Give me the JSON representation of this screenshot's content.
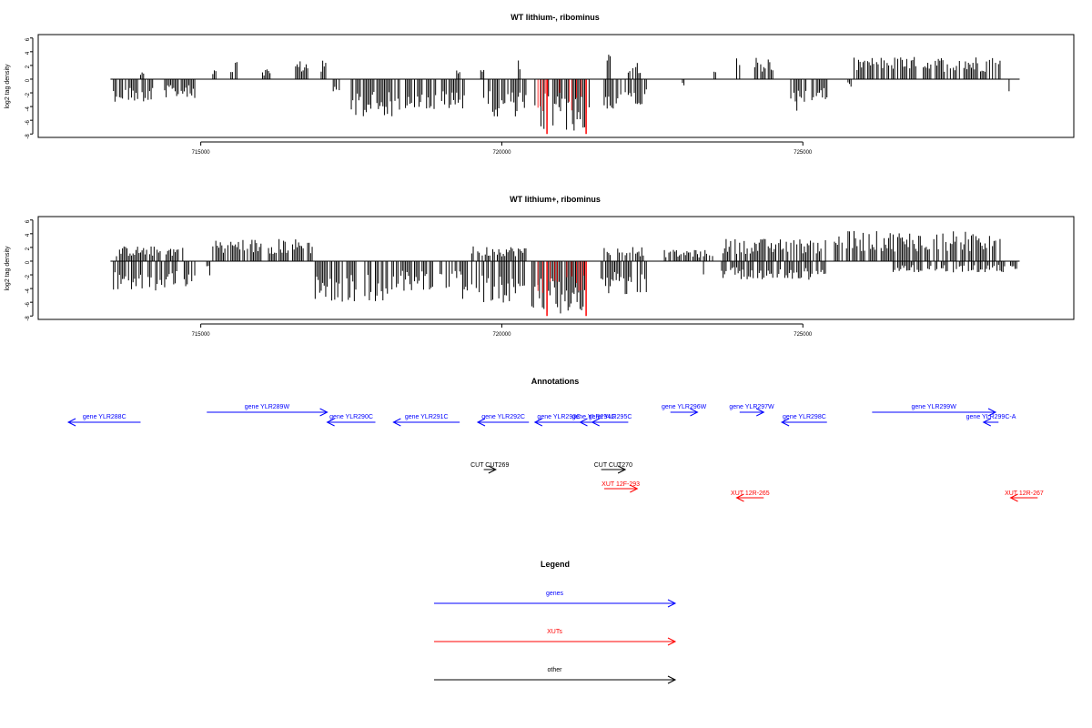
{
  "chart_data": [
    {
      "type": "bar",
      "title": "WT lithium-, ribominus",
      "ylabel": "log2 tag density",
      "xlim": [
        712300,
        729500
      ],
      "ylim": [
        -8.5,
        6.5
      ],
      "yticks": [
        6,
        4,
        2,
        0,
        -2,
        -4,
        -6,
        -8
      ],
      "xticks": [
        715000,
        720000,
        725000
      ],
      "xtick_labels": [
        "715000",
        "720000",
        "725000"
      ],
      "baseline_range": [
        713500,
        728600
      ],
      "highlight_color": "#ff0000",
      "highlights": [
        {
          "x": 720750,
          "y": -8
        },
        {
          "x": 721400,
          "y": -8
        }
      ],
      "segments": [
        {
          "start": 713550,
          "end": 714200,
          "sign": -1,
          "level": 3.0,
          "bar_color": "#000000"
        },
        {
          "start": 714000,
          "end": 714050,
          "sign": 1,
          "level": 1.5,
          "bar_color": "#000000"
        },
        {
          "start": 714400,
          "end": 714900,
          "sign": -1,
          "level": 2.5,
          "bar_color": "#000000"
        },
        {
          "start": 715200,
          "end": 715250,
          "sign": 1,
          "level": 1.5,
          "bar_color": "#000000"
        },
        {
          "start": 715500,
          "end": 715600,
          "sign": 1,
          "level": 2.5,
          "bar_color": "#000000"
        },
        {
          "start": 716000,
          "end": 716150,
          "sign": 1,
          "level": 1.5,
          "bar_color": "#000000"
        },
        {
          "start": 716550,
          "end": 716800,
          "sign": 1,
          "level": 2.5,
          "bar_color": "#000000"
        },
        {
          "start": 717000,
          "end": 717080,
          "sign": 1,
          "level": 2.5,
          "bar_color": "#000000"
        },
        {
          "start": 717200,
          "end": 717300,
          "sign": -1,
          "level": 2.5,
          "bar_color": "#000000"
        },
        {
          "start": 717400,
          "end": 718300,
          "sign": -1,
          "level": 5.0,
          "bar_color": "#000000"
        },
        {
          "start": 718400,
          "end": 719400,
          "sign": -1,
          "level": 4.5,
          "bar_color": "#000000"
        },
        {
          "start": 719250,
          "end": 719300,
          "sign": 1,
          "level": 1.2,
          "bar_color": "#000000"
        },
        {
          "start": 719650,
          "end": 719700,
          "sign": 1,
          "level": 1.5,
          "bar_color": "#000000"
        },
        {
          "start": 719700,
          "end": 720400,
          "sign": -1,
          "level": 5.0,
          "bar_color": "#000000"
        },
        {
          "start": 720250,
          "end": 720300,
          "sign": 1,
          "level": 3.5,
          "bar_color": "#000000"
        },
        {
          "start": 720550,
          "end": 721450,
          "sign": -1,
          "level": 7.0,
          "bar_color": "#000000"
        },
        {
          "start": 721700,
          "end": 722400,
          "sign": -1,
          "level": 4.0,
          "bar_color": "#000000"
        },
        {
          "start": 721750,
          "end": 721800,
          "sign": 1,
          "level": 3.7,
          "bar_color": "#000000"
        },
        {
          "start": 722100,
          "end": 722300,
          "sign": 1,
          "level": 2.5,
          "bar_color": "#000000"
        },
        {
          "start": 723000,
          "end": 723050,
          "sign": -1,
          "level": 1.5,
          "bar_color": "#000000"
        },
        {
          "start": 723500,
          "end": 723550,
          "sign": 1,
          "level": 1.0,
          "bar_color": "#000000"
        },
        {
          "start": 723900,
          "end": 723950,
          "sign": 1,
          "level": 3.0,
          "bar_color": "#000000"
        },
        {
          "start": 724200,
          "end": 724500,
          "sign": 1,
          "level": 3.0,
          "bar_color": "#000000"
        },
        {
          "start": 724800,
          "end": 725400,
          "sign": -1,
          "level": 3.0,
          "bar_color": "#000000"
        },
        {
          "start": 724850,
          "end": 724900,
          "sign": -1,
          "level": 4.5,
          "bar_color": "#000000"
        },
        {
          "start": 725750,
          "end": 725800,
          "sign": -1,
          "level": 1.0,
          "bar_color": "#000000"
        },
        {
          "start": 725850,
          "end": 728300,
          "sign": 1,
          "level": 3.0,
          "bar_color": "#000000"
        },
        {
          "start": 728400,
          "end": 728450,
          "sign": -1,
          "level": 1.8,
          "bar_color": "#000000"
        }
      ]
    },
    {
      "type": "bar",
      "title": "WT lithium+, ribominus",
      "ylabel": "log2 tag density",
      "xlim": [
        712300,
        729500
      ],
      "ylim": [
        -8.5,
        6.5
      ],
      "yticks": [
        6,
        4,
        2,
        0,
        -2,
        -4,
        -6,
        -8
      ],
      "xticks": [
        715000,
        720000,
        725000
      ],
      "xtick_labels": [
        "715000",
        "720000",
        "725000"
      ],
      "baseline_range": [
        713500,
        728600
      ],
      "highlight_color": "#ff0000",
      "highlights": [
        {
          "x": 720750,
          "y": -8
        },
        {
          "x": 721400,
          "y": -8
        }
      ],
      "segments": [
        {
          "start": 713550,
          "end": 714900,
          "sign": -1,
          "level": 4.0,
          "bar_color": "#000000"
        },
        {
          "start": 713600,
          "end": 714700,
          "sign": 1,
          "level": 2.0,
          "bar_color": "#000000"
        },
        {
          "start": 715100,
          "end": 715150,
          "sign": -1,
          "level": 2.0,
          "bar_color": "#000000"
        },
        {
          "start": 715200,
          "end": 716850,
          "sign": 1,
          "level": 3.0,
          "bar_color": "#000000"
        },
        {
          "start": 716900,
          "end": 718200,
          "sign": -1,
          "level": 5.5,
          "bar_color": "#000000"
        },
        {
          "start": 718250,
          "end": 719350,
          "sign": -1,
          "level": 4.0,
          "bar_color": "#000000"
        },
        {
          "start": 719350,
          "end": 720400,
          "sign": -1,
          "level": 5.5,
          "bar_color": "#000000"
        },
        {
          "start": 719500,
          "end": 720400,
          "sign": 1,
          "level": 2.0,
          "bar_color": "#000000"
        },
        {
          "start": 720500,
          "end": 721450,
          "sign": -1,
          "level": 7.0,
          "bar_color": "#000000"
        },
        {
          "start": 721650,
          "end": 722400,
          "sign": -1,
          "level": 4.5,
          "bar_color": "#000000"
        },
        {
          "start": 721700,
          "end": 722350,
          "sign": 1,
          "level": 2.0,
          "bar_color": "#000000"
        },
        {
          "start": 722600,
          "end": 723500,
          "sign": 1,
          "level": 1.5,
          "bar_color": "#000000"
        },
        {
          "start": 723300,
          "end": 723350,
          "sign": -1,
          "level": 2.0,
          "bar_color": "#000000"
        },
        {
          "start": 723650,
          "end": 725400,
          "sign": 1,
          "level": 3.0,
          "bar_color": "#000000"
        },
        {
          "start": 723650,
          "end": 725400,
          "sign": -1,
          "level": 2.5,
          "bar_color": "#000000"
        },
        {
          "start": 725500,
          "end": 728300,
          "sign": 1,
          "level": 4.0,
          "bar_color": "#000000"
        },
        {
          "start": 726500,
          "end": 728350,
          "sign": -1,
          "level": 1.5,
          "bar_color": "#000000"
        },
        {
          "start": 728450,
          "end": 728550,
          "sign": -1,
          "level": 1.5,
          "bar_color": "#000000"
        }
      ]
    }
  ],
  "annotations": {
    "title": "Annotations",
    "genes": [
      {
        "label": "gene YLR288C",
        "from": 714000,
        "to": 712800,
        "row": 2
      },
      {
        "label": "gene YLR289W",
        "from": 715100,
        "to": 717100,
        "row": 1
      },
      {
        "label": "gene YLR290C",
        "from": 717900,
        "to": 717100,
        "row": 2
      },
      {
        "label": "gene YLR291C",
        "from": 719300,
        "to": 718200,
        "row": 2
      },
      {
        "label": "gene YLR292C",
        "from": 720450,
        "to": 719600,
        "row": 2
      },
      {
        "label": "gene YLR293C",
        "from": 721350,
        "to": 720550,
        "row": 2
      },
      {
        "label": "gene YLR294C",
        "from": 721750,
        "to": 721300,
        "row": 2
      },
      {
        "label": "gene YLR295C",
        "from": 722100,
        "to": 721500,
        "row": 2
      },
      {
        "label": "gene YLR296W",
        "from": 722800,
        "to": 723250,
        "row": 1
      },
      {
        "label": "gene YLR297W",
        "from": 723950,
        "to": 724350,
        "row": 1
      },
      {
        "label": "gene YLR298C",
        "from": 725400,
        "to": 724650,
        "row": 2
      },
      {
        "label": "gene YLR299W",
        "from": 726150,
        "to": 728200,
        "row": 1
      },
      {
        "label": "gene YLR299C-A",
        "from": 728250,
        "to": 728000,
        "row": 2
      }
    ],
    "others": [
      {
        "label": "CUT CUT269",
        "from": 719700,
        "to": 719900
      },
      {
        "label": "CUT CUT270",
        "from": 721650,
        "to": 722050
      }
    ],
    "xuts": [
      {
        "label": "XUT 12F-293",
        "from": 721700,
        "to": 722250,
        "row": 1
      },
      {
        "label": "XUT 12R-265",
        "from": 724350,
        "to": 723900,
        "row": 2
      },
      {
        "label": "XUT 12R-267",
        "from": 728900,
        "to": 728450,
        "row": 2
      }
    ]
  },
  "legend": {
    "title": "Legend",
    "items": [
      {
        "label": "genes",
        "color": "#0000ff"
      },
      {
        "label": "XUTs",
        "color": "#ff0000"
      },
      {
        "label": "other",
        "color": "#000000"
      }
    ]
  }
}
